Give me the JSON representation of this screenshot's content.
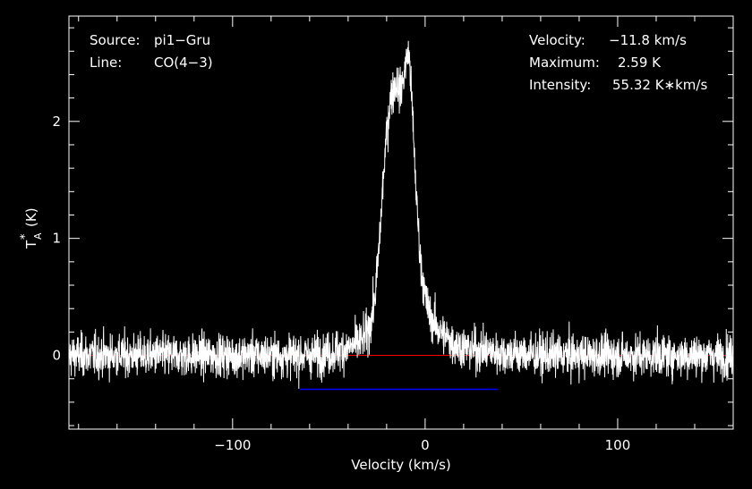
{
  "chart_data": {
    "type": "line",
    "title": "",
    "xlabel": "Velocity (km/s)",
    "ylabel": "T",
    "ylabel_sub": "A",
    "ylabel_sup": "*",
    "ylabel_unit": "(K)",
    "xlim": [
      -185,
      160
    ],
    "ylim": [
      -0.63,
      2.9
    ],
    "xticks": [
      -100,
      0,
      100
    ],
    "xtick_labels": [
      "−100",
      "0",
      "100"
    ],
    "yticks": [
      0,
      1,
      2
    ],
    "ytick_labels": [
      "0",
      "1",
      "2"
    ],
    "grid": false,
    "series": [
      {
        "color": "#ffffff",
        "x": [
          -185,
          -160,
          -140,
          -120,
          -100,
          -80,
          -60,
          -50,
          -45,
          -40,
          -35,
          -32,
          -30,
          -28,
          -26,
          -24,
          -22,
          -20,
          -18,
          -16,
          -15,
          -14,
          -13,
          -12,
          -11,
          -10,
          -9,
          -8,
          -7,
          -6,
          -5,
          -4,
          -3,
          -2,
          0,
          2,
          4,
          6,
          8,
          10,
          12,
          15,
          20,
          25,
          30,
          40,
          50,
          60,
          80,
          100,
          120,
          140,
          160
        ],
        "y": [
          0,
          0,
          0,
          0,
          0,
          0,
          0,
          0.02,
          0.04,
          0.06,
          0.1,
          0.14,
          0.2,
          0.3,
          0.5,
          0.9,
          1.45,
          1.9,
          2.2,
          2.3,
          2.32,
          2.3,
          2.25,
          2.3,
          2.4,
          2.5,
          2.59,
          2.5,
          2.2,
          1.85,
          1.5,
          1.2,
          0.95,
          0.75,
          0.5,
          0.36,
          0.3,
          0.24,
          0.2,
          0.17,
          0.14,
          0.1,
          0.07,
          0.05,
          0.04,
          0.02,
          0.01,
          0,
          0,
          0,
          0,
          0,
          0
        ],
        "noise_rms": 0.09
      }
    ],
    "baseline": {
      "y": 0,
      "color": "#ff0000"
    },
    "window": {
      "x": [
        -65,
        38
      ],
      "y": -0.29,
      "color": "#0000ff"
    },
    "annotations_left": [
      {
        "label": "Source:",
        "value": "pi1−Gru"
      },
      {
        "label": "Line:",
        "value": "CO(4−3)"
      }
    ],
    "annotations_right": [
      {
        "label": "Velocity:",
        "value": "−11.8 km/s"
      },
      {
        "label": "Maximum:",
        "value": "2.59 K"
      },
      {
        "label": "Intensity:",
        "value": "55.32 K∗km/s"
      }
    ]
  }
}
